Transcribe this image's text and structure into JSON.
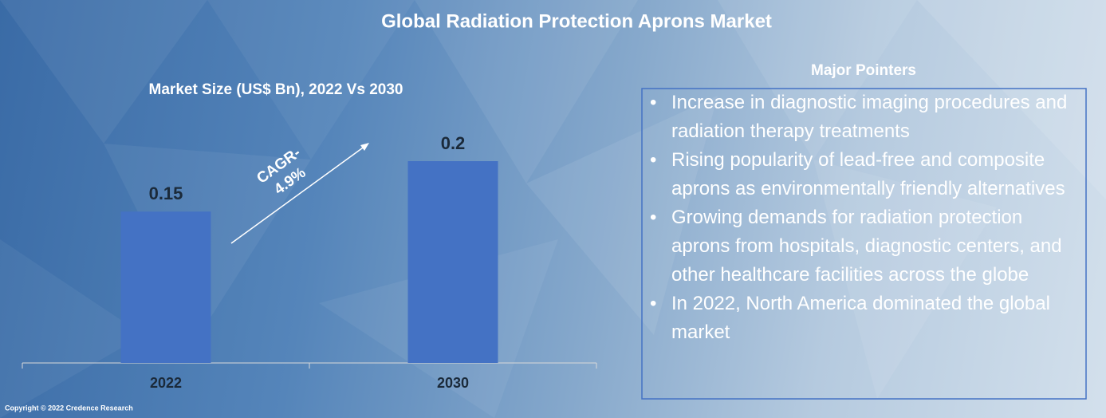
{
  "chart_data": {
    "type": "bar",
    "title": "Global Radiation Protection Aprons Market",
    "subtitle": "Market Size (US$ Bn), 2022 Vs 2030",
    "categories": [
      "2022",
      "2030"
    ],
    "values": [
      0.15,
      0.2
    ],
    "color": "#4472c4",
    "annotation": [
      "CAGR-",
      "4.9%"
    ]
  },
  "pointers_title": "Major Pointers",
  "pointers": [
    "Increase in diagnostic imaging procedures and radiation therapy treatments",
    "Rising popularity of lead-free and composite aprons as environmentally friendly alternatives",
    "Growing demands for radiation protection aprons from hospitals, diagnostic centers, and other healthcare facilities across the globe",
    "In 2022, North America dominated the global market"
  ],
  "copyright": "Copyright © 2022 Credence Research"
}
